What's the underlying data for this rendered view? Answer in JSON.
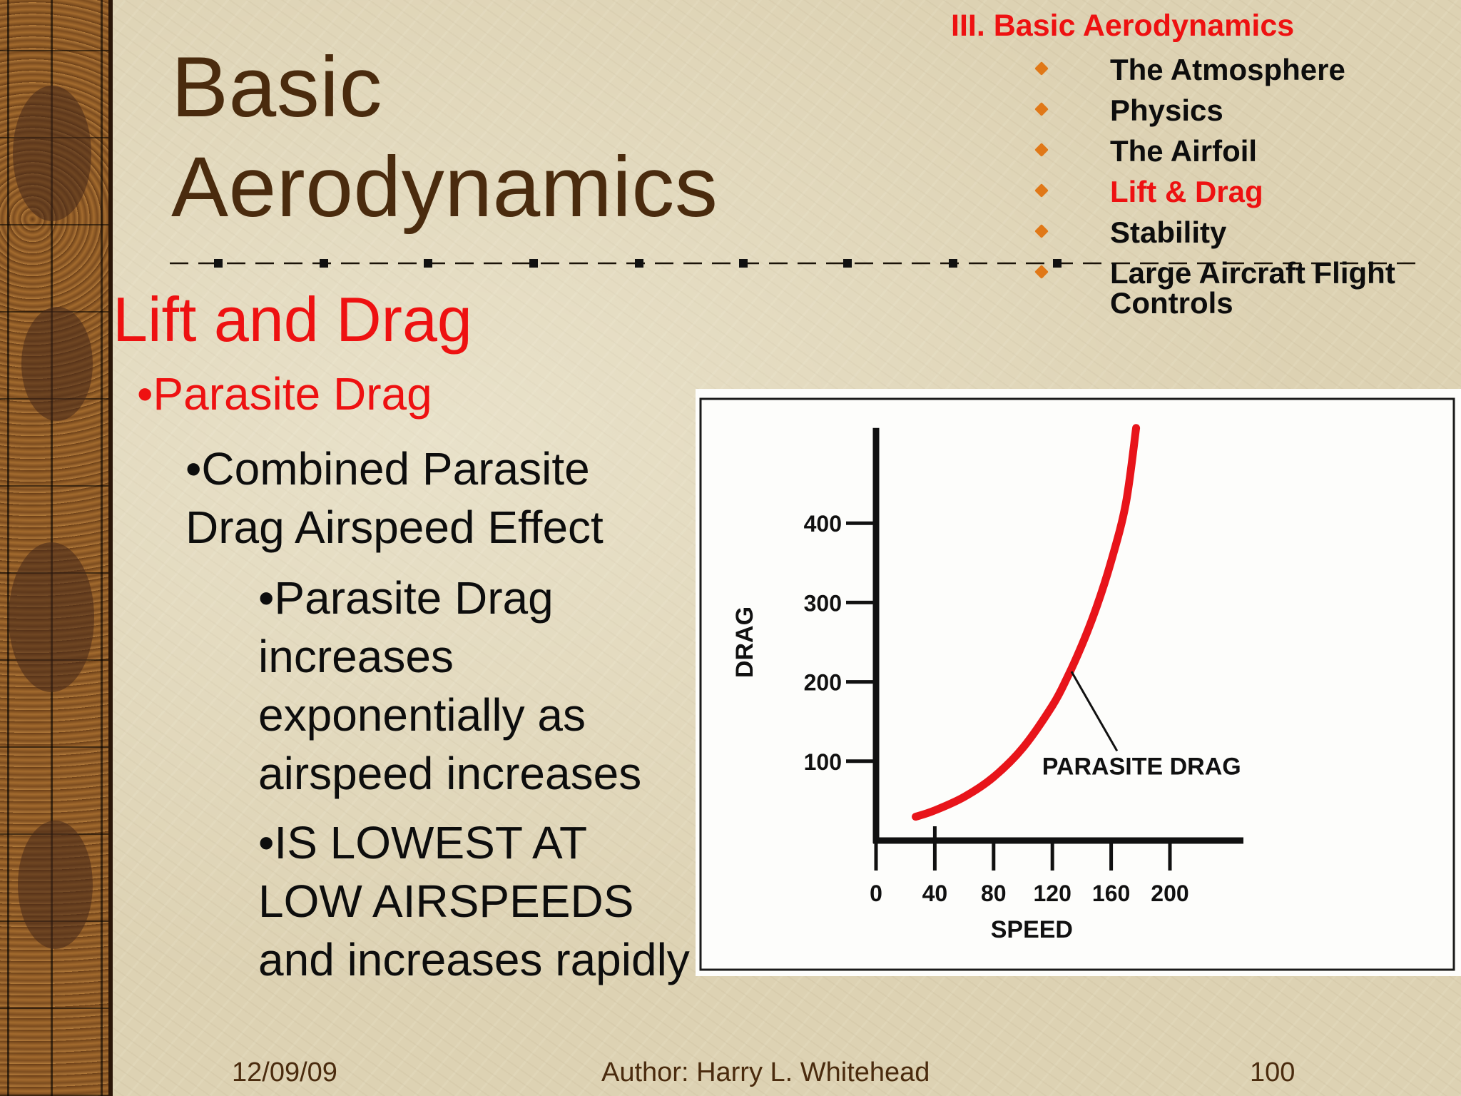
{
  "slide": {
    "title_line1": "Basic",
    "title_line2": "Aerodynamics",
    "section_heading": "Lift and Drag",
    "bullet_l1": "•Parasite Drag",
    "bullet_l2": "•Combined Parasite Drag Airspeed Effect",
    "bullet_l3a": "•Parasite Drag increases exponentially as airspeed increases",
    "bullet_l3b": "•IS LOWEST AT LOW AIRSPEEDS and increases rapidly"
  },
  "toc": {
    "title": "III. Basic Aerodynamics",
    "items": [
      {
        "label": "The Atmosphere"
      },
      {
        "label": "Physics"
      },
      {
        "label": "The Airfoil"
      },
      {
        "label": "Lift & Drag"
      },
      {
        "label": "Stability"
      },
      {
        "label": "Large Aircraft Flight Controls"
      }
    ],
    "active_index": 3
  },
  "footer": {
    "date": "12/09/09",
    "author": "Author:  Harry L. Whitehead",
    "page": "100"
  },
  "colors": {
    "title_brown": "#4a2b0e",
    "accent_red": "#ee1111",
    "bullet_orange": "#e07818",
    "curve_red": "#e8141a"
  },
  "chart_data": {
    "type": "line",
    "xlabel": "SPEED",
    "ylabel": "DRAG",
    "x_ticks": [
      0,
      40,
      80,
      120,
      160,
      200
    ],
    "y_ticks": [
      100,
      200,
      300,
      400
    ],
    "xlim": [
      0,
      250
    ],
    "ylim": [
      0,
      520
    ],
    "grid": false,
    "annotation": "PARASITE DRAG",
    "series": [
      {
        "x": [
          27,
          40,
          60,
          80,
          100,
          120,
          130,
          140,
          150,
          160,
          170,
          177
        ],
        "y": [
          30,
          38,
          55,
          80,
          117,
          170,
          205,
          246,
          294,
          352,
          425,
          520
        ]
      }
    ]
  }
}
